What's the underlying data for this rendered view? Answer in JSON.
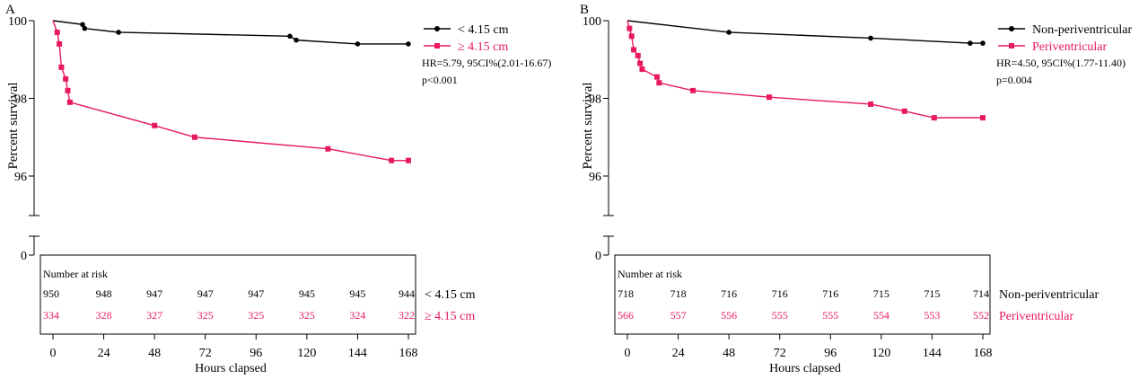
{
  "chart_data": [
    {
      "type": "line",
      "panel_label": "A",
      "ylabel": "Percent survival",
      "xlabel": "Hours clapsed",
      "xticks": [
        0,
        24,
        48,
        72,
        96,
        120,
        144,
        168
      ],
      "yticks": [
        100,
        98,
        96
      ],
      "ybreak_label": "0",
      "xlim": [
        0,
        168
      ],
      "ylim": [
        95,
        100
      ],
      "series": [
        {
          "name": "< 4.15 cm",
          "color": "#000000",
          "marker": "circle",
          "points": [
            [
              0,
              100
            ],
            [
              14,
              99.9
            ],
            [
              15,
              99.8
            ],
            [
              31,
              99.7
            ],
            [
              112,
              99.6
            ],
            [
              115,
              99.5
            ],
            [
              144,
              99.4
            ],
            [
              168,
              99.4
            ]
          ]
        },
        {
          "name": "≥ 4.15 cm",
          "color": "#e8195f",
          "marker": "square",
          "points": [
            [
              0,
              100
            ],
            [
              2,
              99.7
            ],
            [
              3,
              99.4
            ],
            [
              4,
              98.8
            ],
            [
              6,
              98.5
            ],
            [
              7,
              98.2
            ],
            [
              8,
              97.9
            ],
            [
              48,
              97.3
            ],
            [
              67,
              97.0
            ],
            [
              130,
              96.7
            ],
            [
              160,
              96.4
            ],
            [
              168,
              96.4
            ]
          ]
        }
      ],
      "stats_text": [
        "HR=5.79, 95CI%(2.01-16.67)",
        "p<0.001"
      ],
      "risk_table": {
        "title": "Number at risk",
        "rows": [
          {
            "label": "< 4.15 cm",
            "color": "#000000",
            "values": [
              "950",
              "948",
              "947",
              "947",
              "947",
              "945",
              "945",
              "944"
            ]
          },
          {
            "label": "≥ 4.15 cm",
            "color": "#e8195f",
            "values": [
              "334",
              "328",
              "327",
              "325",
              "325",
              "325",
              "324",
              "322"
            ]
          }
        ]
      }
    },
    {
      "type": "line",
      "panel_label": "B",
      "ylabel": "Percent survival",
      "xlabel": "Hours clapsed",
      "xticks": [
        0,
        24,
        48,
        72,
        96,
        120,
        144,
        168
      ],
      "yticks": [
        100,
        98,
        96
      ],
      "ybreak_label": "0",
      "xlim": [
        0,
        168
      ],
      "ylim": [
        95,
        100
      ],
      "series": [
        {
          "name": "Non-periventricular",
          "color": "#000000",
          "marker": "circle",
          "points": [
            [
              0,
              100
            ],
            [
              48,
              99.7
            ],
            [
              115,
              99.55
            ],
            [
              162,
              99.42
            ],
            [
              168,
              99.42
            ]
          ]
        },
        {
          "name": "Periventricular",
          "color": "#e8195f",
          "marker": "square",
          "points": [
            [
              0,
              100
            ],
            [
              1,
              99.8
            ],
            [
              2,
              99.6
            ],
            [
              3,
              99.25
            ],
            [
              5,
              99.1
            ],
            [
              6,
              98.9
            ],
            [
              7,
              98.75
            ],
            [
              14,
              98.55
            ],
            [
              15,
              98.4
            ],
            [
              31,
              98.2
            ],
            [
              67,
              98.03
            ],
            [
              115,
              97.85
            ],
            [
              131,
              97.67
            ],
            [
              145,
              97.5
            ],
            [
              168,
              97.5
            ]
          ]
        }
      ],
      "stats_text": [
        "HR=4.50, 95CI%(1.77-11.40)",
        "p=0.004"
      ],
      "risk_table": {
        "title": "Number at risk",
        "rows": [
          {
            "label": "Non-periventricular",
            "color": "#000000",
            "values": [
              "718",
              "718",
              "716",
              "716",
              "716",
              "715",
              "715",
              "714"
            ]
          },
          {
            "label": "Periventricular",
            "color": "#e8195f",
            "values": [
              "566",
              "557",
              "556",
              "555",
              "555",
              "554",
              "553",
              "552"
            ]
          }
        ]
      }
    }
  ]
}
